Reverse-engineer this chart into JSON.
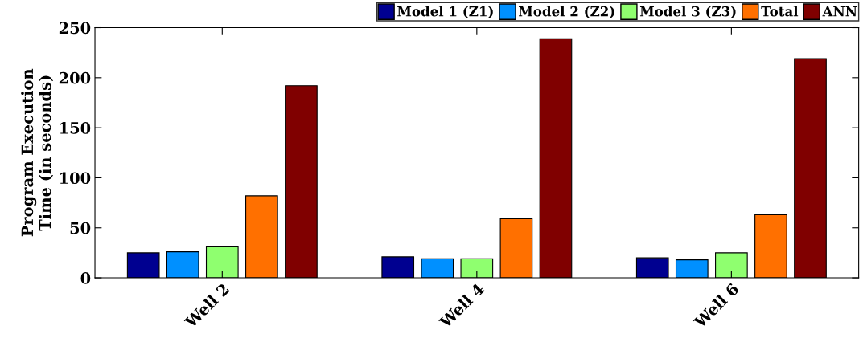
{
  "chart_data": {
    "type": "bar",
    "ylabel": "Program Execution\nTime (in seconds)",
    "categories": [
      "Well 2",
      "Well 4",
      "Well 6"
    ],
    "series": [
      {
        "name": "Model 1 (Z1)",
        "color": "#000090",
        "values": [
          25,
          21,
          20
        ]
      },
      {
        "name": "Model 2 (Z2)",
        "color": "#0090ff",
        "values": [
          26,
          19,
          18
        ]
      },
      {
        "name": "Model 3 (Z3)",
        "color": "#8fff6f",
        "values": [
          31,
          19,
          25
        ]
      },
      {
        "name": "Total",
        "color": "#ff7000",
        "values": [
          82,
          59,
          63
        ]
      },
      {
        "name": "ANN",
        "color": "#800000",
        "values": [
          192,
          239,
          219
        ]
      }
    ],
    "ylim": [
      0,
      250
    ],
    "yticks": [
      0,
      50,
      100,
      150,
      200,
      250
    ],
    "grid": false,
    "legend": "top right"
  }
}
